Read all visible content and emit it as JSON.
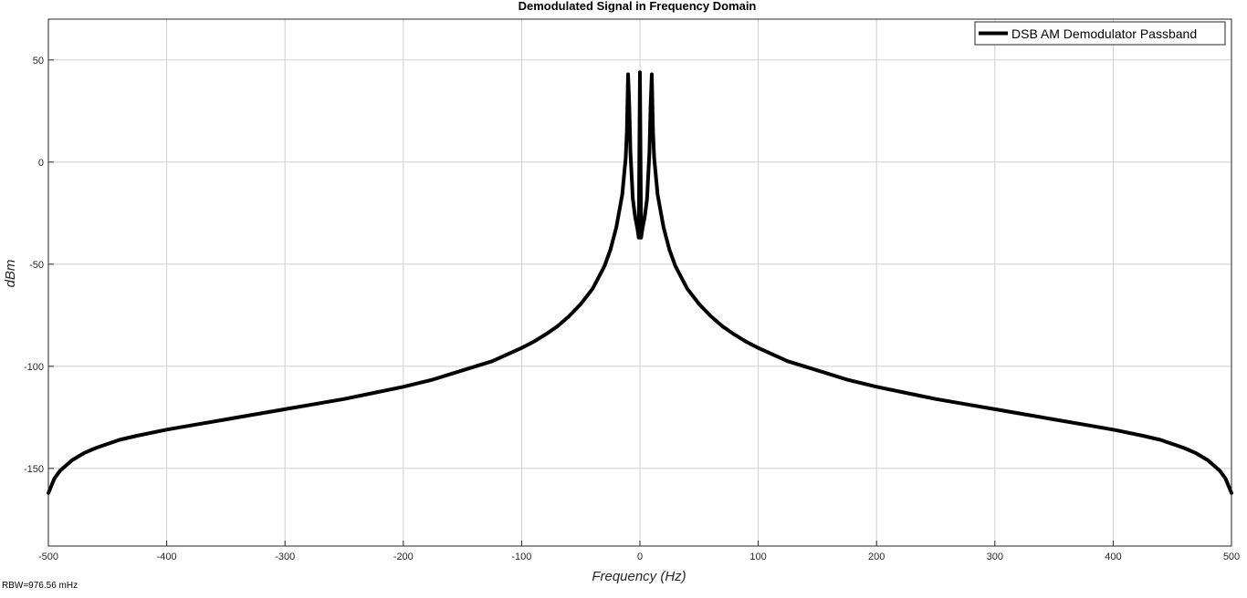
{
  "chart_data": {
    "type": "line",
    "title": "Demodulated Signal in Frequency Domain",
    "xlabel": "Frequency (Hz)",
    "ylabel": "dBm",
    "xlim": [
      -500,
      500
    ],
    "ylim": [
      -188,
      70
    ],
    "x_ticks": [
      -500,
      -400,
      -300,
      -200,
      -100,
      0,
      100,
      200,
      300,
      400,
      500
    ],
    "y_ticks": [
      -150,
      -100,
      -50,
      0,
      50
    ],
    "grid": true,
    "legend_position": "top-right",
    "series": [
      {
        "name": "DSB AM Demodulator Passband",
        "color": "#000000",
        "x": [
          -500,
          -495,
          -490,
          -480,
          -470,
          -460,
          -450,
          -440,
          -425,
          -400,
          -375,
          -350,
          -325,
          -300,
          -275,
          -250,
          -225,
          -200,
          -175,
          -150,
          -125,
          -100,
          -90,
          -80,
          -70,
          -60,
          -50,
          -40,
          -30,
          -25,
          -20,
          -15,
          -12,
          -11,
          -10,
          -9,
          -8,
          -6,
          -4,
          -2,
          -1,
          0,
          1,
          2,
          4,
          6,
          8,
          9,
          10,
          11,
          12,
          15,
          20,
          25,
          30,
          40,
          50,
          60,
          70,
          80,
          90,
          100,
          125,
          150,
          175,
          200,
          225,
          250,
          275,
          300,
          325,
          350,
          375,
          400,
          425,
          440,
          450,
          460,
          470,
          480,
          490,
          495,
          500
        ],
        "y": [
          -162,
          -155,
          -151,
          -146,
          -142.5,
          -140,
          -138,
          -136,
          -134,
          -131,
          -128.5,
          -126,
          -123.5,
          -121,
          -118.5,
          -116,
          -113,
          -110,
          -106.5,
          -102,
          -97.5,
          -91,
          -88,
          -84.5,
          -80.5,
          -75.5,
          -69.5,
          -62,
          -51,
          -43,
          -32,
          -16,
          2,
          15,
          43,
          28,
          5,
          -18,
          -27,
          -33,
          -37,
          44,
          -37,
          -33,
          -27,
          -18,
          5,
          28,
          43,
          15,
          2,
          -16,
          -32,
          -43,
          -51,
          -62,
          -69.5,
          -75.5,
          -80.5,
          -84.5,
          -88,
          -91,
          -97.5,
          -102,
          -106.5,
          -110,
          -113,
          -116,
          -118.5,
          -121,
          -123.5,
          -126,
          -128.5,
          -131,
          -134,
          -136,
          -138,
          -140,
          -142.5,
          -146,
          -151,
          -155,
          -162
        ]
      }
    ]
  },
  "footer": {
    "rbw_label": "RBW=976.56 mHz"
  }
}
